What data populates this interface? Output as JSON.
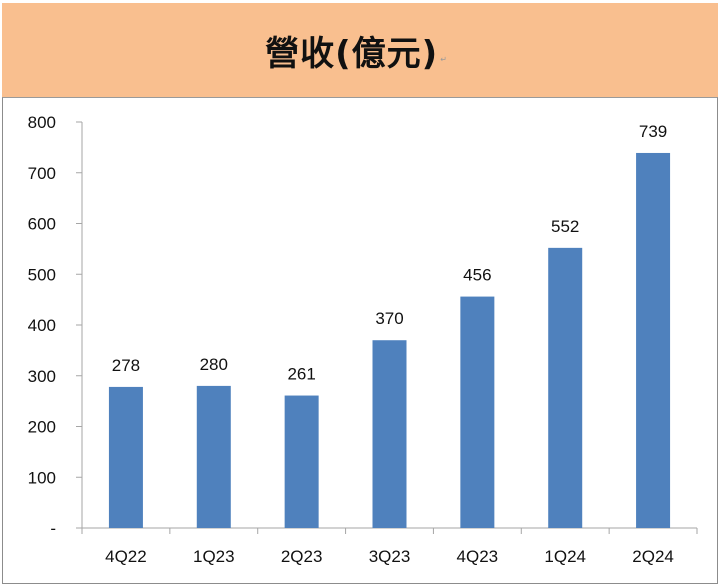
{
  "header": {
    "title": "營收(億元)"
  },
  "chart_data": {
    "type": "bar",
    "title": "營收(億元)",
    "xlabel": "",
    "ylabel": "",
    "categories": [
      "4Q22",
      "1Q23",
      "2Q23",
      "3Q23",
      "4Q23",
      "1Q24",
      "2Q24"
    ],
    "values": [
      278,
      280,
      261,
      370,
      456,
      552,
      739
    ],
    "data_labels": [
      "278",
      "280",
      "261",
      "370",
      "456",
      "552",
      "739"
    ],
    "ylim": [
      0,
      800
    ],
    "yticks": [
      0,
      100,
      200,
      300,
      400,
      500,
      600,
      700,
      800
    ],
    "ytick_labels": [
      "-",
      "100",
      "200",
      "300",
      "400",
      "500",
      "600",
      "700",
      "800"
    ],
    "grid": false,
    "legend": "none",
    "colors": {
      "bar": "#4F81BD",
      "header_bg": "#F9BF8F",
      "axis": "#A6A6A6"
    }
  }
}
